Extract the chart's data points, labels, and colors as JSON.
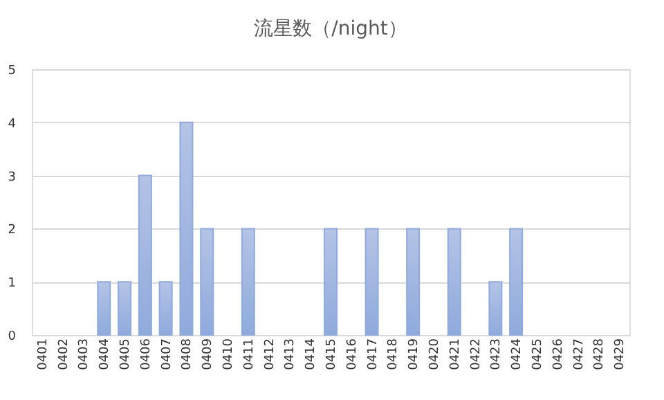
{
  "chart_data": {
    "type": "bar",
    "title": "流星数（/night）",
    "categories": [
      "0401",
      "0402",
      "0403",
      "0404",
      "0405",
      "0406",
      "0407",
      "0408",
      "0409",
      "0410",
      "0411",
      "0412",
      "0413",
      "0414",
      "0415",
      "0416",
      "0417",
      "0418",
      "0419",
      "0420",
      "0421",
      "0422",
      "0423",
      "0424",
      "0425",
      "0426",
      "0427",
      "0428",
      "0429"
    ],
    "series": [
      {
        "color": "#8faadc",
        "values": [
          0,
          0,
          0,
          1,
          1,
          3,
          1,
          4,
          2,
          0,
          2,
          0,
          0,
          0,
          2,
          0,
          2,
          0,
          2,
          0,
          2,
          0,
          1,
          2,
          0,
          0,
          0,
          0,
          0
        ]
      }
    ],
    "ylim": [
      0,
      5
    ],
    "yticks": [
      0,
      1,
      2,
      3,
      4,
      5
    ],
    "grid": "y"
  }
}
